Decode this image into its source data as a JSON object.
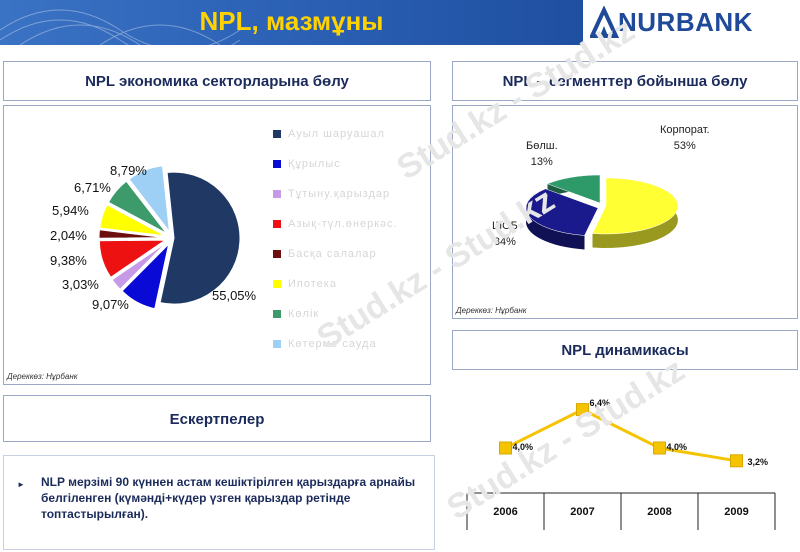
{
  "header": {
    "title": "NPL, мазмұны",
    "logo_text": "NURBANK",
    "colors": {
      "bar": "#2a5fb3",
      "title": "#ffd200",
      "logo": "#1f4a9a"
    }
  },
  "watermark_text": "Stud.kz - Stud.kz",
  "sector_panel": {
    "title": "NPL экономика секторларына бөлу",
    "source": "Дереккөз: Нұрбанк",
    "chart_data": {
      "type": "pie",
      "categories": [
        "Ауыл шаруашал",
        "Құрылыс",
        "Тұтыну.қарыздар",
        "Азық-түл.өнеркәс.",
        "Басқа салалар",
        "Ипотека",
        "Көлік",
        "Көтерме сауда"
      ],
      "values": [
        55.05,
        9.07,
        3.03,
        9.38,
        2.04,
        5.94,
        6.71,
        8.79
      ],
      "labels": [
        "55,05%",
        "9,07%",
        "3,03%",
        "9,38%",
        "2,04%",
        "5,94%",
        "6,71%",
        "8,79%"
      ],
      "colors": [
        "#1f3864",
        "#0a0ad6",
        "#c79ae8",
        "#ee1111",
        "#6b0f0f",
        "#ffff00",
        "#3d9a6b",
        "#9ed0f5"
      ],
      "legend": "right"
    }
  },
  "segment_panel": {
    "title": "NPL – сегменттер бойынша бөлу",
    "source": "Дереккөз: Нұрбанк",
    "chart_data": {
      "type": "pie",
      "categories": [
        "Корпорат.",
        "ШОБ",
        "Бөлш."
      ],
      "values": [
        53,
        34,
        13
      ],
      "labels": [
        "53%",
        "34%",
        "13%"
      ],
      "colors": [
        "#ffff33",
        "#1a1a8c",
        "#2e9a6a"
      ]
    }
  },
  "notes_panel": {
    "title": "Ескертпелер",
    "bullet": "►",
    "text": "NLP мерзімі 90 күннен астам кешіктірілген қарыздарға арнайы белгіленген (күмәнді+күдер үзген қарыздар ретінде топтастырылған)."
  },
  "dynamics_panel": {
    "title": "NPL динамикасы",
    "chart_data": {
      "type": "line",
      "categories": [
        "2006",
        "2007",
        "2008",
        "2009"
      ],
      "values": [
        4.0,
        6.4,
        4.0,
        3.2
      ],
      "labels": [
        "4,0%",
        "6,4%",
        "4,0%",
        "3,2%"
      ],
      "colors": {
        "line": "#f5c400",
        "marker": "#f5c400"
      }
    }
  }
}
